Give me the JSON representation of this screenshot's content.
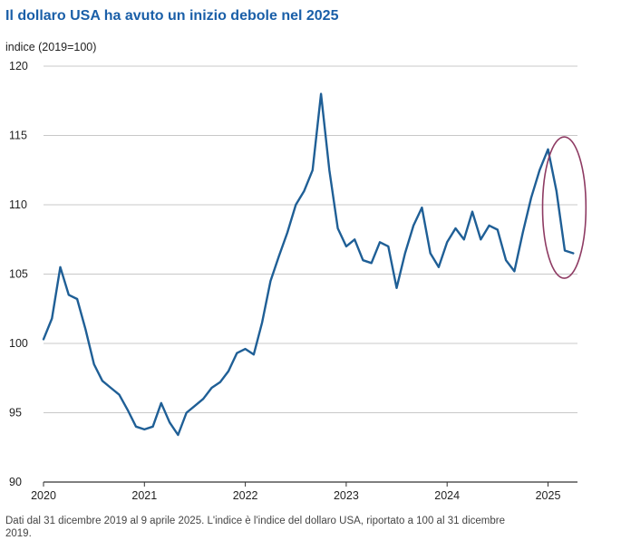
{
  "chart_data": {
    "type": "line",
    "title": "Il dollaro USA ha avuto un inizio debole nel 2025",
    "ylabel": "indice (2019=100)",
    "xlabel": "",
    "ylim": [
      90,
      120
    ],
    "yticks": [
      "120",
      "115",
      "110",
      "105",
      "100",
      "95",
      "90"
    ],
    "xticks": [
      "2020",
      "2021",
      "2022",
      "2023",
      "2024",
      "2025"
    ],
    "grid": "horizontal",
    "line_color": "#1f5f96",
    "highlight_color": "#8e3b63",
    "highlight": {
      "x_from": "2025-01",
      "x_to": "2025-04",
      "y_from": 104.7,
      "y_to": 114.9
    },
    "series": [
      {
        "x": [
          "2020-01",
          "2020-02",
          "2020-03",
          "2020-04",
          "2020-05",
          "2020-06",
          "2020-07",
          "2020-08",
          "2020-09",
          "2020-10",
          "2020-11",
          "2020-12",
          "2021-01",
          "2021-02",
          "2021-03",
          "2021-04",
          "2021-05",
          "2021-06",
          "2021-07",
          "2021-08",
          "2021-09",
          "2021-10",
          "2021-11",
          "2021-12",
          "2022-01",
          "2022-02",
          "2022-03",
          "2022-04",
          "2022-05",
          "2022-06",
          "2022-07",
          "2022-08",
          "2022-09",
          "2022-10",
          "2022-11",
          "2022-12",
          "2023-01",
          "2023-02",
          "2023-03",
          "2023-04",
          "2023-05",
          "2023-06",
          "2023-07",
          "2023-08",
          "2023-09",
          "2023-10",
          "2023-11",
          "2023-12",
          "2024-01",
          "2024-02",
          "2024-03",
          "2024-04",
          "2024-05",
          "2024-06",
          "2024-07",
          "2024-08",
          "2024-09",
          "2024-10",
          "2024-11",
          "2024-12",
          "2025-01",
          "2025-02",
          "2025-03",
          "2025-04"
        ],
        "values": [
          100.3,
          101.8,
          105.5,
          103.5,
          103.2,
          101.0,
          98.5,
          97.3,
          96.8,
          96.3,
          95.2,
          94.0,
          93.8,
          94.0,
          95.7,
          94.3,
          93.4,
          95.0,
          95.5,
          96.0,
          96.8,
          97.2,
          98.0,
          99.3,
          99.6,
          99.2,
          101.5,
          104.5,
          106.3,
          108.0,
          110.0,
          111.0,
          112.5,
          118.0,
          112.5,
          108.3,
          107.0,
          107.5,
          106.0,
          105.8,
          107.3,
          107.0,
          104.0,
          106.5,
          108.5,
          109.8,
          106.5,
          105.5,
          107.3,
          108.3,
          107.5,
          109.5,
          107.5,
          108.5,
          108.2,
          106.0,
          105.2,
          108.0,
          110.5,
          112.5,
          114.0,
          111.0,
          106.7,
          106.5
        ]
      }
    ]
  },
  "footnote": "Dati dal 31 dicembre 2019 al 9 aprile 2025. L'indice è l'indice del dollaro USA, riportato a 100 al 31 dicembre 2019."
}
